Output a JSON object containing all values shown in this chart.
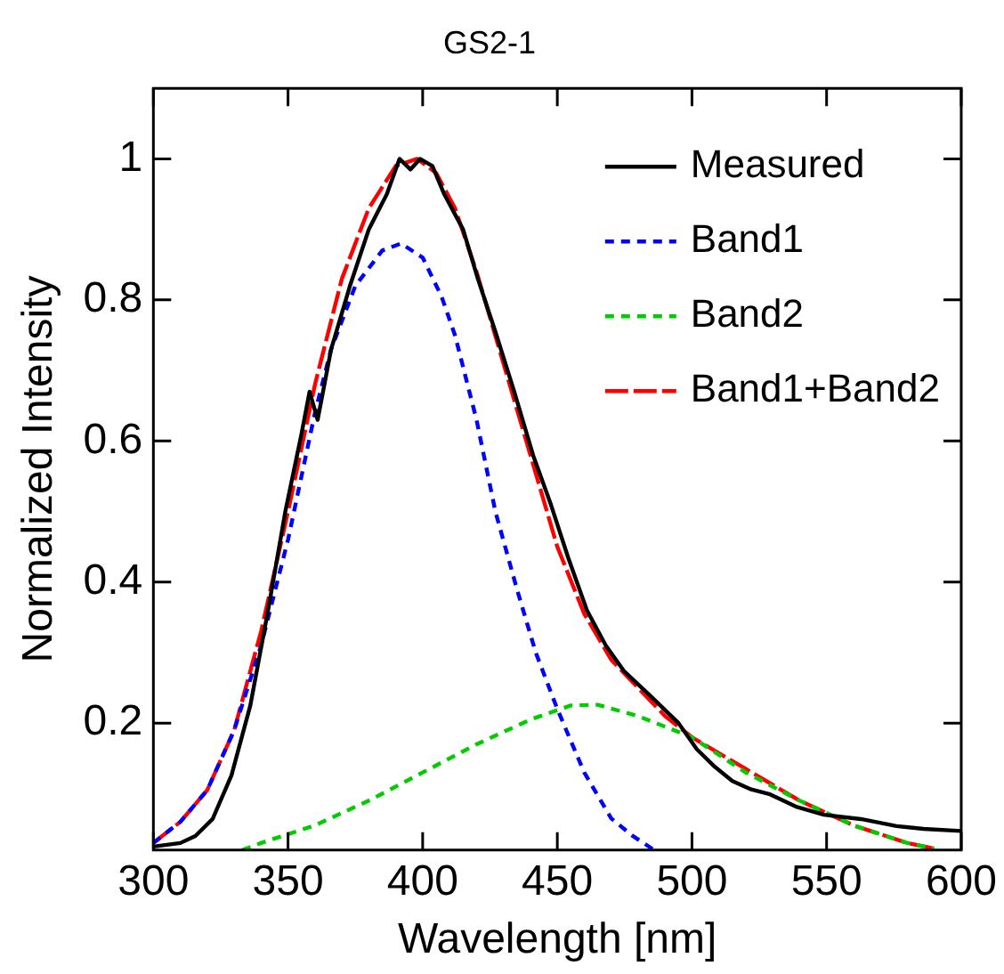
{
  "chart_data": {
    "type": "line",
    "title": "GS2-1",
    "xlabel": "Wavelength [nm]",
    "ylabel": "Normalized Intensity",
    "xlim": [
      300,
      600
    ],
    "ylim": [
      0.02,
      1.1
    ],
    "xticks": [
      300,
      350,
      400,
      450,
      500,
      550,
      600
    ],
    "yticks": [
      0.2,
      0.4,
      0.6,
      0.8,
      1
    ],
    "legend": "top right",
    "marker": "none",
    "series": [
      {
        "name": "Measured",
        "color": "#000000",
        "line_style": "solid",
        "x": [
          300,
          310,
          315.6,
          322,
          329,
          336,
          342.6,
          349,
          355,
          358,
          361,
          366,
          373,
          380,
          386.7,
          391.4,
          395.5,
          399,
          403.6,
          408,
          415,
          420.5,
          427,
          434,
          441,
          447.6,
          454,
          461,
          468,
          474.7,
          485,
          495,
          501.8,
          508.5,
          515,
          522,
          529,
          539,
          549,
          562.7,
          576,
          586,
          600
        ],
        "values": [
          0.025,
          0.03,
          0.04,
          0.064,
          0.126,
          0.225,
          0.36,
          0.5,
          0.61,
          0.67,
          0.63,
          0.73,
          0.82,
          0.9,
          0.95,
          1.0,
          0.985,
          1.0,
          0.99,
          0.95,
          0.9,
          0.83,
          0.755,
          0.67,
          0.58,
          0.51,
          0.435,
          0.36,
          0.31,
          0.274,
          0.237,
          0.2,
          0.163,
          0.138,
          0.118,
          0.106,
          0.099,
          0.081,
          0.07,
          0.064,
          0.054,
          0.05,
          0.047
        ]
      },
      {
        "name": "Band1",
        "color": "#0000ff",
        "line_style": "dotted",
        "x": [
          300,
          310,
          320,
          330,
          340,
          350,
          360,
          366,
          375,
          385,
          392,
          400,
          407,
          412,
          420,
          427,
          435,
          442,
          450,
          460,
          470,
          478,
          486
        ],
        "values": [
          0.03,
          0.06,
          0.105,
          0.19,
          0.31,
          0.46,
          0.64,
          0.73,
          0.82,
          0.87,
          0.88,
          0.86,
          0.805,
          0.75,
          0.63,
          0.5,
          0.39,
          0.3,
          0.22,
          0.13,
          0.065,
          0.04,
          0.02
        ]
      },
      {
        "name": "Band2",
        "color": "#00cc00",
        "line_style": "dotted",
        "x": [
          333,
          340,
          360,
          380,
          400,
          420,
          440,
          455,
          465,
          480,
          500,
          520,
          540,
          560,
          580,
          590
        ],
        "values": [
          0.02,
          0.03,
          0.055,
          0.09,
          0.13,
          0.17,
          0.205,
          0.225,
          0.226,
          0.21,
          0.18,
          0.13,
          0.09,
          0.055,
          0.03,
          0.022
        ]
      },
      {
        "name": "Band1+Band2",
        "color": "#ff0000",
        "line_style": "dashed",
        "x": [
          300,
          310,
          320,
          330,
          340,
          350,
          360,
          370,
          380,
          390,
          398,
          405,
          412,
          420,
          430,
          440,
          450,
          460,
          470,
          480,
          490,
          500,
          520,
          540,
          560,
          580,
          590
        ],
        "values": [
          0.03,
          0.06,
          0.105,
          0.19,
          0.33,
          0.5,
          0.68,
          0.83,
          0.93,
          0.99,
          1.0,
          0.98,
          0.93,
          0.84,
          0.71,
          0.58,
          0.45,
          0.355,
          0.29,
          0.25,
          0.21,
          0.18,
          0.135,
          0.09,
          0.055,
          0.03,
          0.022
        ]
      }
    ]
  }
}
